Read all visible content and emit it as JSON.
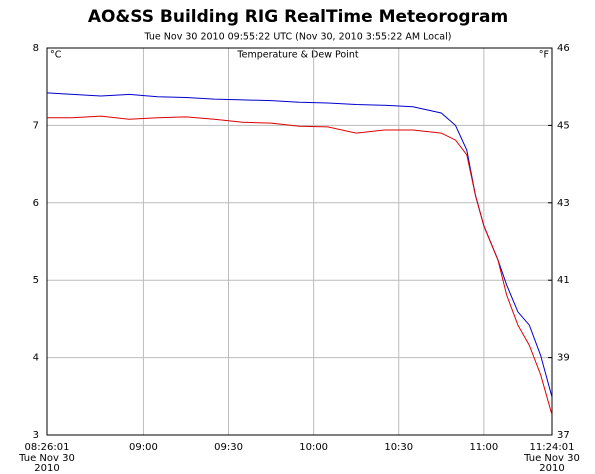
{
  "chart_data": {
    "type": "line",
    "title": "AO&SS Building RIG RealTime Meteorogram",
    "subtitle": "Tue Nov 30 2010  09:55:22 UTC     (Nov 30, 2010 3:55:22 AM Local)",
    "panel_title": "Temperature & Dew Point",
    "y_unit": "°C",
    "y2_unit": "°F",
    "x": [
      506.0167,
      515,
      525,
      535,
      545,
      555,
      565,
      575,
      585,
      595,
      605,
      615,
      625,
      635,
      645,
      650,
      654,
      657,
      660,
      665,
      668,
      672,
      676,
      680,
      684.0167
    ],
    "series": [
      {
        "name": "Temperature",
        "color": "#0000cc",
        "values": [
          7.42,
          7.4,
          7.38,
          7.4,
          7.37,
          7.36,
          7.34,
          7.33,
          7.32,
          7.3,
          7.29,
          7.27,
          7.26,
          7.24,
          7.16,
          7.0,
          6.68,
          6.1,
          5.7,
          5.26,
          4.94,
          4.59,
          4.42,
          4.03,
          3.49
        ]
      },
      {
        "name": "Dew Point",
        "color": "#dd0000",
        "values": [
          7.1,
          7.1,
          7.12,
          7.08,
          7.1,
          7.11,
          7.08,
          7.04,
          7.03,
          6.99,
          6.98,
          6.9,
          6.94,
          6.94,
          6.9,
          6.81,
          6.62,
          6.1,
          5.7,
          5.26,
          4.81,
          4.42,
          4.16,
          3.78,
          3.26
        ]
      }
    ],
    "xlim": [
      506.0167,
      684.0167
    ],
    "xticks": [
      {
        "value": 506.0167,
        "label": "08:26:01"
      },
      {
        "value": 540,
        "label": "09:00"
      },
      {
        "value": 570,
        "label": "09:30"
      },
      {
        "value": 600,
        "label": "10:00"
      },
      {
        "value": 630,
        "label": "10:30"
      },
      {
        "value": 660,
        "label": "11:00"
      },
      {
        "value": 684.0167,
        "label": "11:24:01"
      }
    ],
    "x_end_dates": [
      "Tue Nov 30",
      "2010"
    ],
    "ylim": [
      3,
      8
    ],
    "yticks": [
      3,
      4,
      5,
      6,
      7,
      8
    ],
    "y2lim": [
      37.4,
      46.4
    ],
    "y2ticks": [
      {
        "value": 37.4,
        "label": "37"
      },
      {
        "value": 39.2,
        "label": "39"
      },
      {
        "value": 41,
        "label": "41"
      },
      {
        "value": 42.8,
        "label": "43"
      },
      {
        "value": 44.6,
        "label": "45"
      },
      {
        "value": 46.4,
        "label": "46"
      }
    ],
    "grid": true
  }
}
